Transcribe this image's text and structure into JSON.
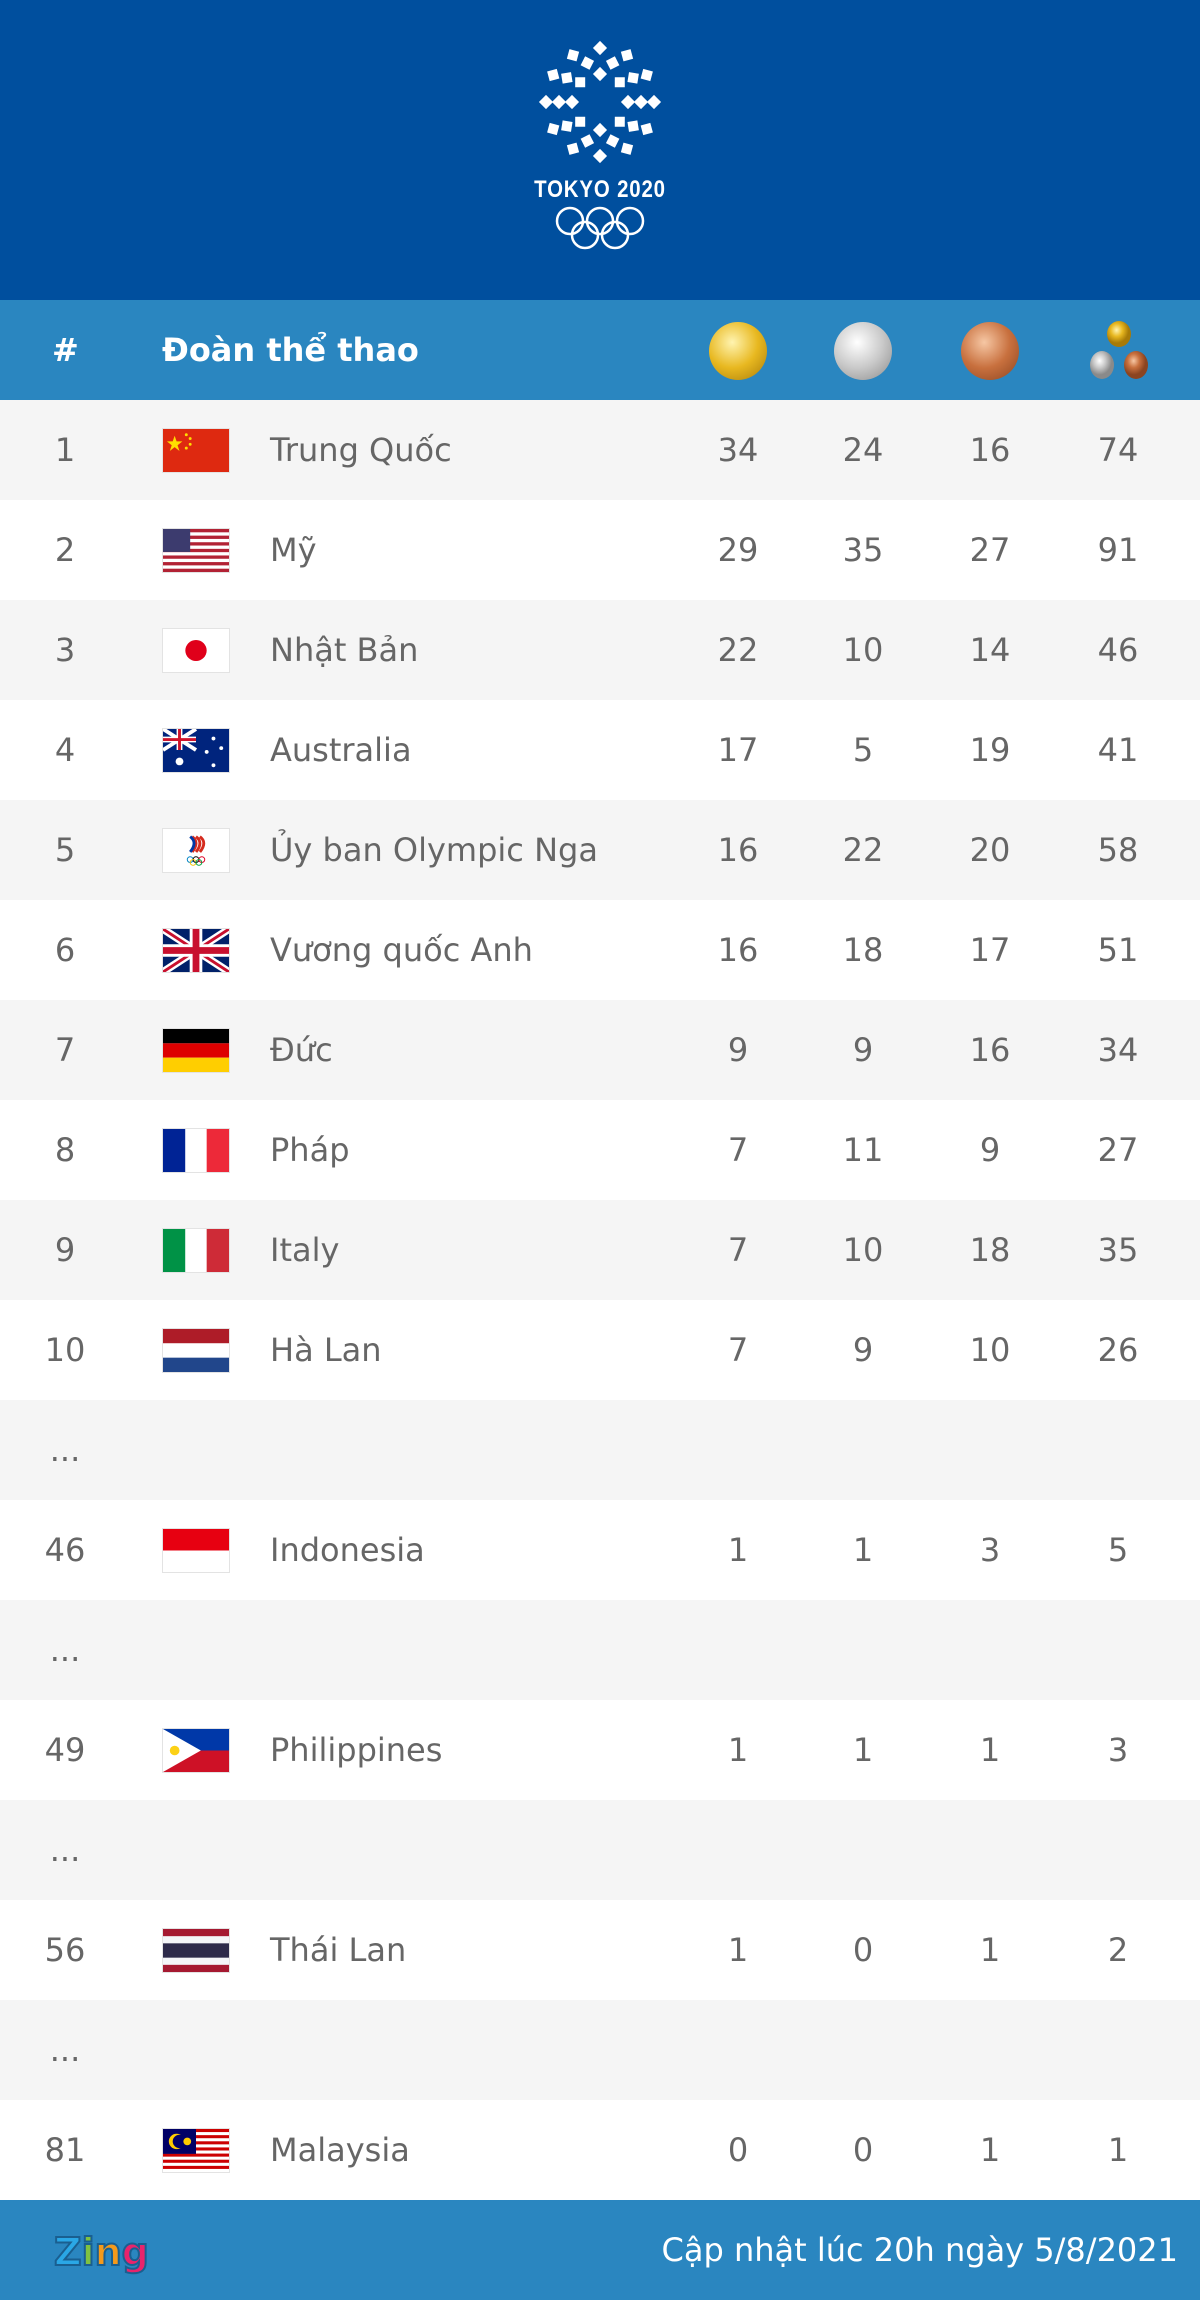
{
  "logo": {
    "title": "TOKYO 2020"
  },
  "header": {
    "rank": "#",
    "team": "Đoàn thể thao",
    "icons": [
      "gold-medal",
      "silver-medal",
      "bronze-medal",
      "total-medals"
    ]
  },
  "colors": {
    "top": "#004f9e",
    "header": "#2a86c0",
    "row_alt": "#f5f5f5",
    "text": "#666666"
  },
  "rows": [
    {
      "rank": "1",
      "name": "Trung Quốc",
      "flag": "china",
      "gold": "34",
      "silver": "24",
      "bronze": "16",
      "total": "74"
    },
    {
      "rank": "2",
      "name": "Mỹ",
      "flag": "usa",
      "gold": "29",
      "silver": "35",
      "bronze": "27",
      "total": "91"
    },
    {
      "rank": "3",
      "name": "Nhật Bản",
      "flag": "japan",
      "gold": "22",
      "silver": "10",
      "bronze": "14",
      "total": "46"
    },
    {
      "rank": "4",
      "name": "Australia",
      "flag": "australia",
      "gold": "17",
      "silver": "5",
      "bronze": "19",
      "total": "41"
    },
    {
      "rank": "5",
      "name": "Ủy ban Olympic Nga",
      "flag": "roc",
      "gold": "16",
      "silver": "22",
      "bronze": "20",
      "total": "58"
    },
    {
      "rank": "6",
      "name": "Vương quốc Anh",
      "flag": "uk",
      "gold": "16",
      "silver": "18",
      "bronze": "17",
      "total": "51"
    },
    {
      "rank": "7",
      "name": "Đức",
      "flag": "germany",
      "gold": "9",
      "silver": "9",
      "bronze": "16",
      "total": "34"
    },
    {
      "rank": "8",
      "name": "Pháp",
      "flag": "france",
      "gold": "7",
      "silver": "11",
      "bronze": "9",
      "total": "27"
    },
    {
      "rank": "9",
      "name": "Italy",
      "flag": "italy",
      "gold": "7",
      "silver": "10",
      "bronze": "18",
      "total": "35"
    },
    {
      "rank": "10",
      "name": "Hà Lan",
      "flag": "netherlands",
      "gold": "7",
      "silver": "9",
      "bronze": "10",
      "total": "26"
    },
    {
      "rank": "..."
    },
    {
      "rank": "46",
      "name": "Indonesia",
      "flag": "indonesia",
      "gold": "1",
      "silver": "1",
      "bronze": "3",
      "total": "5"
    },
    {
      "rank": "..."
    },
    {
      "rank": "49",
      "name": "Philippines",
      "flag": "philippines",
      "gold": "1",
      "silver": "1",
      "bronze": "1",
      "total": "3"
    },
    {
      "rank": "..."
    },
    {
      "rank": "56",
      "name": "Thái Lan",
      "flag": "thailand",
      "gold": "1",
      "silver": "0",
      "bronze": "1",
      "total": "2"
    },
    {
      "rank": "..."
    },
    {
      "rank": "81",
      "name": "Malaysia",
      "flag": "malaysia",
      "gold": "0",
      "silver": "0",
      "bronze": "1",
      "total": "1"
    }
  ],
  "footer": {
    "brand": "Zing",
    "updated": "Cập nhật lúc 20h ngày 5/8/2021"
  }
}
